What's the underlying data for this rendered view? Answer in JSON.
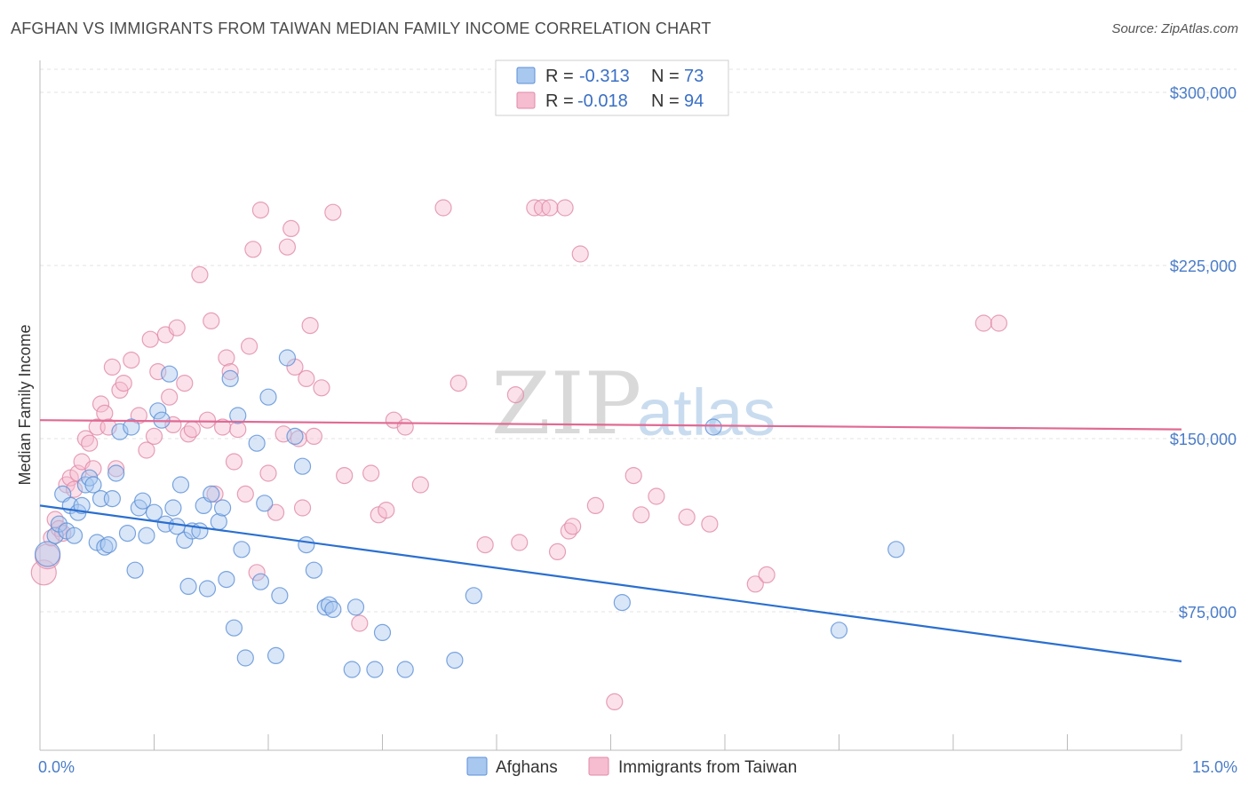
{
  "header": {
    "title": "AFGHAN VS IMMIGRANTS FROM TAIWAN MEDIAN FAMILY INCOME CORRELATION CHART",
    "source": "Source: ZipAtlas.com"
  },
  "watermark": {
    "zip": "ZIP",
    "atlas": "atlas"
  },
  "colors": {
    "afghans_fill": "#a9c8f0",
    "afghans_stroke": "#5b8fd6",
    "afghans_line": "#2a6fd0",
    "taiwan_fill": "#f6bcd0",
    "taiwan_stroke": "#e08aa8",
    "taiwan_line": "#e06a94",
    "tick_text": "#4a7cc8",
    "grid": "#e3e3e3"
  },
  "legend": {
    "rows": [
      {
        "r_label": "R = ",
        "r_value": "-0.313",
        "n_label": "N = ",
        "n_value": "73"
      },
      {
        "r_label": "R = ",
        "r_value": "-0.018",
        "n_label": "N = ",
        "n_value": "94"
      }
    ]
  },
  "chart_data": {
    "type": "scatter",
    "title": "AFGHAN VS IMMIGRANTS FROM TAIWAN MEDIAN FAMILY INCOME CORRELATION CHART",
    "xlabel": "",
    "ylabel": "Median Family Income",
    "xlim": [
      0,
      15
    ],
    "ylim": [
      15000,
      310000
    ],
    "x_tick_labels": [
      "0.0%",
      "15.0%"
    ],
    "y_ticks": [
      75000,
      150000,
      225000,
      300000
    ],
    "y_tick_labels": [
      "$75,000",
      "$150,000",
      "$225,000",
      "$300,000"
    ],
    "grid": "horizontal dashed",
    "legend_position": "top-center and bottom",
    "series": [
      {
        "name": "Afghans",
        "trend": {
          "x": [
            0,
            15
          ],
          "y": [
            121000,
            53500
          ]
        },
        "points": [
          [
            0.1,
            100000
          ],
          [
            0.2,
            108000
          ],
          [
            0.25,
            113000
          ],
          [
            0.3,
            126000
          ],
          [
            0.35,
            110000
          ],
          [
            0.4,
            121000
          ],
          [
            0.45,
            108000
          ],
          [
            0.5,
            118000
          ],
          [
            0.55,
            121000
          ],
          [
            0.6,
            130000
          ],
          [
            0.65,
            133000
          ],
          [
            0.7,
            130000
          ],
          [
            0.75,
            105000
          ],
          [
            0.8,
            124000
          ],
          [
            0.85,
            103000
          ],
          [
            0.9,
            104000
          ],
          [
            0.95,
            124000
          ],
          [
            1.0,
            135000
          ],
          [
            1.05,
            153000
          ],
          [
            1.15,
            109000
          ],
          [
            1.2,
            155000
          ],
          [
            1.25,
            93000
          ],
          [
            1.3,
            120000
          ],
          [
            1.35,
            123000
          ],
          [
            1.4,
            108000
          ],
          [
            1.5,
            118000
          ],
          [
            1.55,
            162000
          ],
          [
            1.6,
            158000
          ],
          [
            1.65,
            113000
          ],
          [
            1.7,
            178000
          ],
          [
            1.75,
            120000
          ],
          [
            1.8,
            112000
          ],
          [
            1.85,
            130000
          ],
          [
            1.9,
            106000
          ],
          [
            1.95,
            86000
          ],
          [
            2.0,
            110000
          ],
          [
            2.1,
            110000
          ],
          [
            2.15,
            121000
          ],
          [
            2.2,
            85000
          ],
          [
            2.25,
            126000
          ],
          [
            2.35,
            114000
          ],
          [
            2.4,
            120000
          ],
          [
            2.45,
            89000
          ],
          [
            2.5,
            176000
          ],
          [
            2.55,
            68000
          ],
          [
            2.6,
            160000
          ],
          [
            2.65,
            102000
          ],
          [
            2.7,
            55000
          ],
          [
            2.85,
            148000
          ],
          [
            2.9,
            88000
          ],
          [
            2.95,
            122000
          ],
          [
            3.0,
            168000
          ],
          [
            3.1,
            56000
          ],
          [
            3.15,
            82000
          ],
          [
            3.25,
            185000
          ],
          [
            3.35,
            151000
          ],
          [
            3.45,
            138000
          ],
          [
            3.5,
            104000
          ],
          [
            3.6,
            93000
          ],
          [
            3.75,
            77000
          ],
          [
            3.8,
            78000
          ],
          [
            3.85,
            76000
          ],
          [
            4.1,
            50000
          ],
          [
            4.15,
            77000
          ],
          [
            4.4,
            50000
          ],
          [
            4.5,
            66000
          ],
          [
            4.8,
            50000
          ],
          [
            5.45,
            54000
          ],
          [
            5.7,
            82000
          ],
          [
            7.65,
            79000
          ],
          [
            8.85,
            155000
          ],
          [
            10.5,
            67000
          ],
          [
            11.25,
            102000
          ]
        ]
      },
      {
        "name": "Immigrants from Taiwan",
        "trend": {
          "x": [
            0,
            15
          ],
          "y": [
            158000,
            154000
          ]
        },
        "points": [
          [
            0.05,
            92000
          ],
          [
            0.1,
            99000
          ],
          [
            0.15,
            107000
          ],
          [
            0.2,
            115000
          ],
          [
            0.25,
            111000
          ],
          [
            0.3,
            109000
          ],
          [
            0.35,
            130000
          ],
          [
            0.4,
            133000
          ],
          [
            0.45,
            128000
          ],
          [
            0.5,
            135000
          ],
          [
            0.55,
            140000
          ],
          [
            0.6,
            150000
          ],
          [
            0.65,
            148000
          ],
          [
            0.7,
            137000
          ],
          [
            0.75,
            155000
          ],
          [
            0.8,
            165000
          ],
          [
            0.85,
            161000
          ],
          [
            0.9,
            155000
          ],
          [
            0.95,
            181000
          ],
          [
            1.0,
            137000
          ],
          [
            1.05,
            171000
          ],
          [
            1.1,
            174000
          ],
          [
            1.2,
            184000
          ],
          [
            1.3,
            160000
          ],
          [
            1.4,
            145000
          ],
          [
            1.45,
            193000
          ],
          [
            1.5,
            151000
          ],
          [
            1.55,
            179000
          ],
          [
            1.65,
            195000
          ],
          [
            1.7,
            168000
          ],
          [
            1.75,
            156000
          ],
          [
            1.8,
            198000
          ],
          [
            1.9,
            174000
          ],
          [
            1.95,
            152000
          ],
          [
            2.0,
            154000
          ],
          [
            2.1,
            221000
          ],
          [
            2.2,
            158000
          ],
          [
            2.25,
            201000
          ],
          [
            2.3,
            126000
          ],
          [
            2.4,
            155000
          ],
          [
            2.45,
            185000
          ],
          [
            2.5,
            179000
          ],
          [
            2.55,
            140000
          ],
          [
            2.6,
            154000
          ],
          [
            2.7,
            126000
          ],
          [
            2.75,
            190000
          ],
          [
            2.8,
            232000
          ],
          [
            2.85,
            92000
          ],
          [
            2.9,
            249000
          ],
          [
            3.0,
            135000
          ],
          [
            3.1,
            118000
          ],
          [
            3.2,
            152000
          ],
          [
            3.25,
            233000
          ],
          [
            3.3,
            241000
          ],
          [
            3.35,
            181000
          ],
          [
            3.4,
            150000
          ],
          [
            3.45,
            120000
          ],
          [
            3.5,
            176000
          ],
          [
            3.55,
            199000
          ],
          [
            3.6,
            151000
          ],
          [
            3.7,
            172000
          ],
          [
            3.85,
            248000
          ],
          [
            4.0,
            134000
          ],
          [
            4.2,
            70000
          ],
          [
            4.35,
            135000
          ],
          [
            4.45,
            117000
          ],
          [
            4.55,
            119000
          ],
          [
            4.65,
            158000
          ],
          [
            4.8,
            155000
          ],
          [
            5.0,
            130000
          ],
          [
            5.3,
            250000
          ],
          [
            5.5,
            174000
          ],
          [
            5.85,
            104000
          ],
          [
            6.25,
            169000
          ],
          [
            6.3,
            105000
          ],
          [
            6.5,
            250000
          ],
          [
            6.6,
            250000
          ],
          [
            6.7,
            250000
          ],
          [
            6.8,
            101000
          ],
          [
            6.9,
            250000
          ],
          [
            6.95,
            110000
          ],
          [
            7.0,
            112000
          ],
          [
            7.1,
            230000
          ],
          [
            7.3,
            121000
          ],
          [
            7.55,
            36000
          ],
          [
            7.8,
            134000
          ],
          [
            7.9,
            117000
          ],
          [
            8.1,
            125000
          ],
          [
            8.5,
            116000
          ],
          [
            8.8,
            113000
          ],
          [
            9.4,
            87000
          ],
          [
            9.55,
            91000
          ],
          [
            12.4,
            200000
          ],
          [
            12.6,
            200000
          ]
        ]
      }
    ]
  },
  "bottom_legend": {
    "items": [
      "Afghans",
      "Immigrants from Taiwan"
    ]
  }
}
